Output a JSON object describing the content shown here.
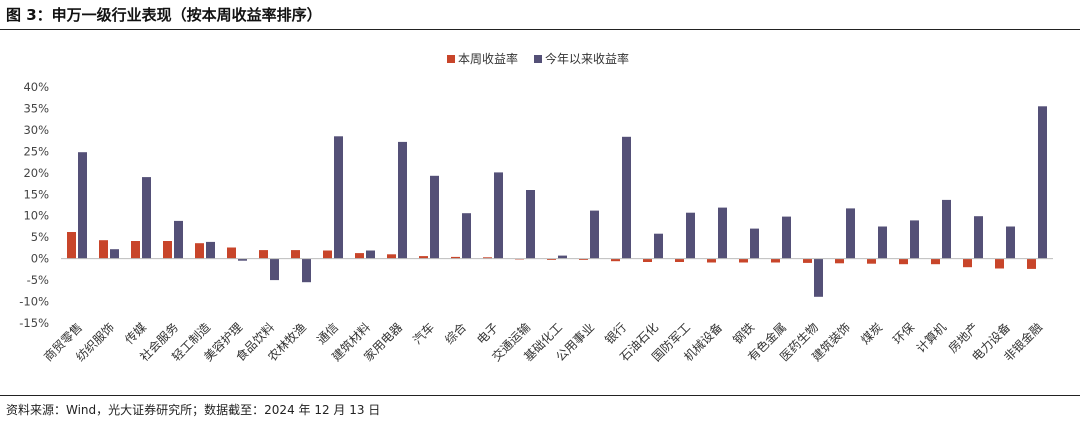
{
  "title": "图 3：申万一级行业表现（按本周收益率排序）",
  "source": "资料来源：Wind，光大证券研究所；数据截至：2024 年 12 月 13 日",
  "colors": {
    "weekly": "#C8452A",
    "ytd": "#545077"
  },
  "chart_data": {
    "type": "bar",
    "ylim": [
      -15,
      40
    ],
    "yticks": [
      -15,
      -10,
      -5,
      0,
      5,
      10,
      15,
      20,
      25,
      30,
      35,
      40
    ],
    "ytick_labels": [
      "-15%",
      "-10%",
      "-5%",
      "0%",
      "5%",
      "10%",
      "15%",
      "20%",
      "25%",
      "30%",
      "35%",
      "40%"
    ],
    "legend_position": "top",
    "grid": false,
    "categories": [
      "商贸零售",
      "纺织服饰",
      "传媒",
      "社会服务",
      "轻工制造",
      "美容护理",
      "食品饮料",
      "农林牧渔",
      "通信",
      "建筑材料",
      "家用电器",
      "汽车",
      "综合",
      "电子",
      "交通运输",
      "基础化工",
      "公用事业",
      "银行",
      "石油石化",
      "国防军工",
      "机械设备",
      "钢铁",
      "有色金属",
      "医药生物",
      "建筑装饰",
      "煤炭",
      "环保",
      "计算机",
      "房地产",
      "电力设备",
      "非银金融"
    ],
    "series": [
      {
        "name": "本周收益率",
        "values": [
          6.2,
          4.3,
          4.1,
          4.1,
          3.6,
          2.6,
          2.0,
          2.0,
          1.9,
          1.3,
          1.0,
          0.6,
          0.4,
          0.3,
          -0.2,
          -0.3,
          -0.3,
          -0.6,
          -0.8,
          -0.8,
          -0.9,
          -0.9,
          -0.9,
          -1.0,
          -1.1,
          -1.2,
          -1.3,
          -1.3,
          -2.0,
          -2.3,
          -2.4
        ]
      },
      {
        "name": "今年以来收益率",
        "values": [
          24.8,
          2.2,
          19.0,
          8.8,
          3.9,
          -0.5,
          -5.0,
          -5.5,
          28.5,
          1.9,
          27.2,
          19.3,
          10.6,
          20.1,
          16.0,
          0.7,
          11.2,
          28.4,
          5.8,
          10.7,
          11.9,
          7.0,
          9.8,
          -8.9,
          11.7,
          7.5,
          8.9,
          13.7,
          9.9,
          7.5,
          35.5
        ]
      }
    ]
  }
}
